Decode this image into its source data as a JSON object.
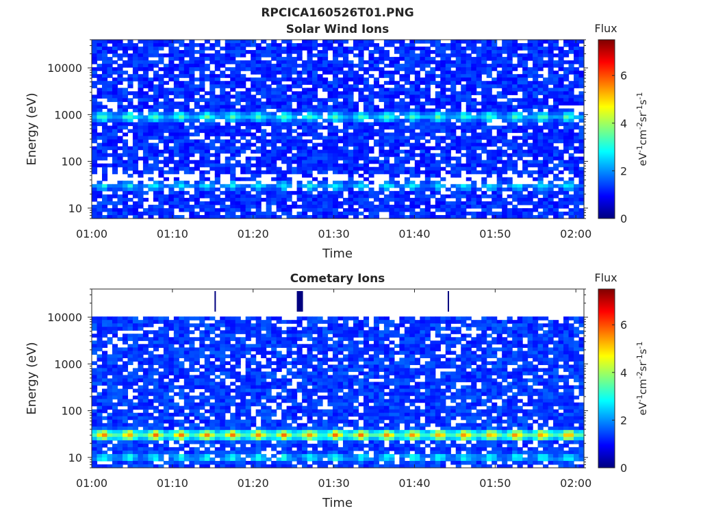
{
  "figure": {
    "filename": "RPCICA160526T01.PNG"
  },
  "colormap": {
    "name": "jet",
    "stops": [
      "#00007f",
      "#0000ff",
      "#007fff",
      "#00ffff",
      "#7fff7f",
      "#ffff00",
      "#ff7f00",
      "#ff0000",
      "#7f0000"
    ]
  },
  "chart_data": [
    {
      "type": "heatmap",
      "title": "Solar Wind Ions",
      "xlabel": "Time",
      "ylabel": "Energy (eV)",
      "x_ticks": [
        "01:00",
        "01:10",
        "01:20",
        "01:30",
        "01:40",
        "01:50",
        "02:00"
      ],
      "xlim_minutes": [
        0,
        61
      ],
      "y_scale": "log",
      "y_ticks": [
        10,
        100,
        1000,
        10000
      ],
      "y_tick_labels": [
        "10",
        "100",
        "1000",
        "10000"
      ],
      "ylim": [
        6,
        40000
      ],
      "colorbar": {
        "title": "Flux",
        "label": "eV-1cm-2sr-1s-1",
        "ticks": [
          0,
          2,
          4,
          6
        ],
        "range": [
          0,
          7.5
        ]
      },
      "features": [
        {
          "description": "background log flux",
          "energy_range": [
            6,
            40000
          ],
          "flux": 0.9
        },
        {
          "description": "solar wind peak",
          "energy_center": 900,
          "flux": 3.2
        },
        {
          "description": "low energy band",
          "energy_center": 30,
          "flux": 2.6
        }
      ]
    },
    {
      "type": "heatmap",
      "title": "Cometary Ions",
      "xlabel": "Time",
      "ylabel": "Energy (eV)",
      "x_ticks": [
        "01:00",
        "01:10",
        "01:20",
        "01:30",
        "01:40",
        "01:50",
        "02:00"
      ],
      "xlim_minutes": [
        0,
        61
      ],
      "y_scale": "log",
      "y_ticks": [
        10,
        100,
        1000,
        10000
      ],
      "y_tick_labels": [
        "10",
        "100",
        "1000",
        "10000"
      ],
      "ylim": [
        6,
        40000
      ],
      "colorbar": {
        "title": "Flux",
        "label": "eV-1cm-2sr-1s-1",
        "ticks": [
          0,
          2,
          4,
          6
        ],
        "range": [
          0,
          7.5
        ]
      },
      "features": [
        {
          "description": "background log flux",
          "energy_range": [
            6,
            11000
          ],
          "flux": 1.0
        },
        {
          "description": "cometary ion peak",
          "energy_center": 30,
          "flux": 5.3
        },
        {
          "description": "lowest energy band",
          "energy_center": 10,
          "flux": 2.8
        }
      ]
    }
  ]
}
